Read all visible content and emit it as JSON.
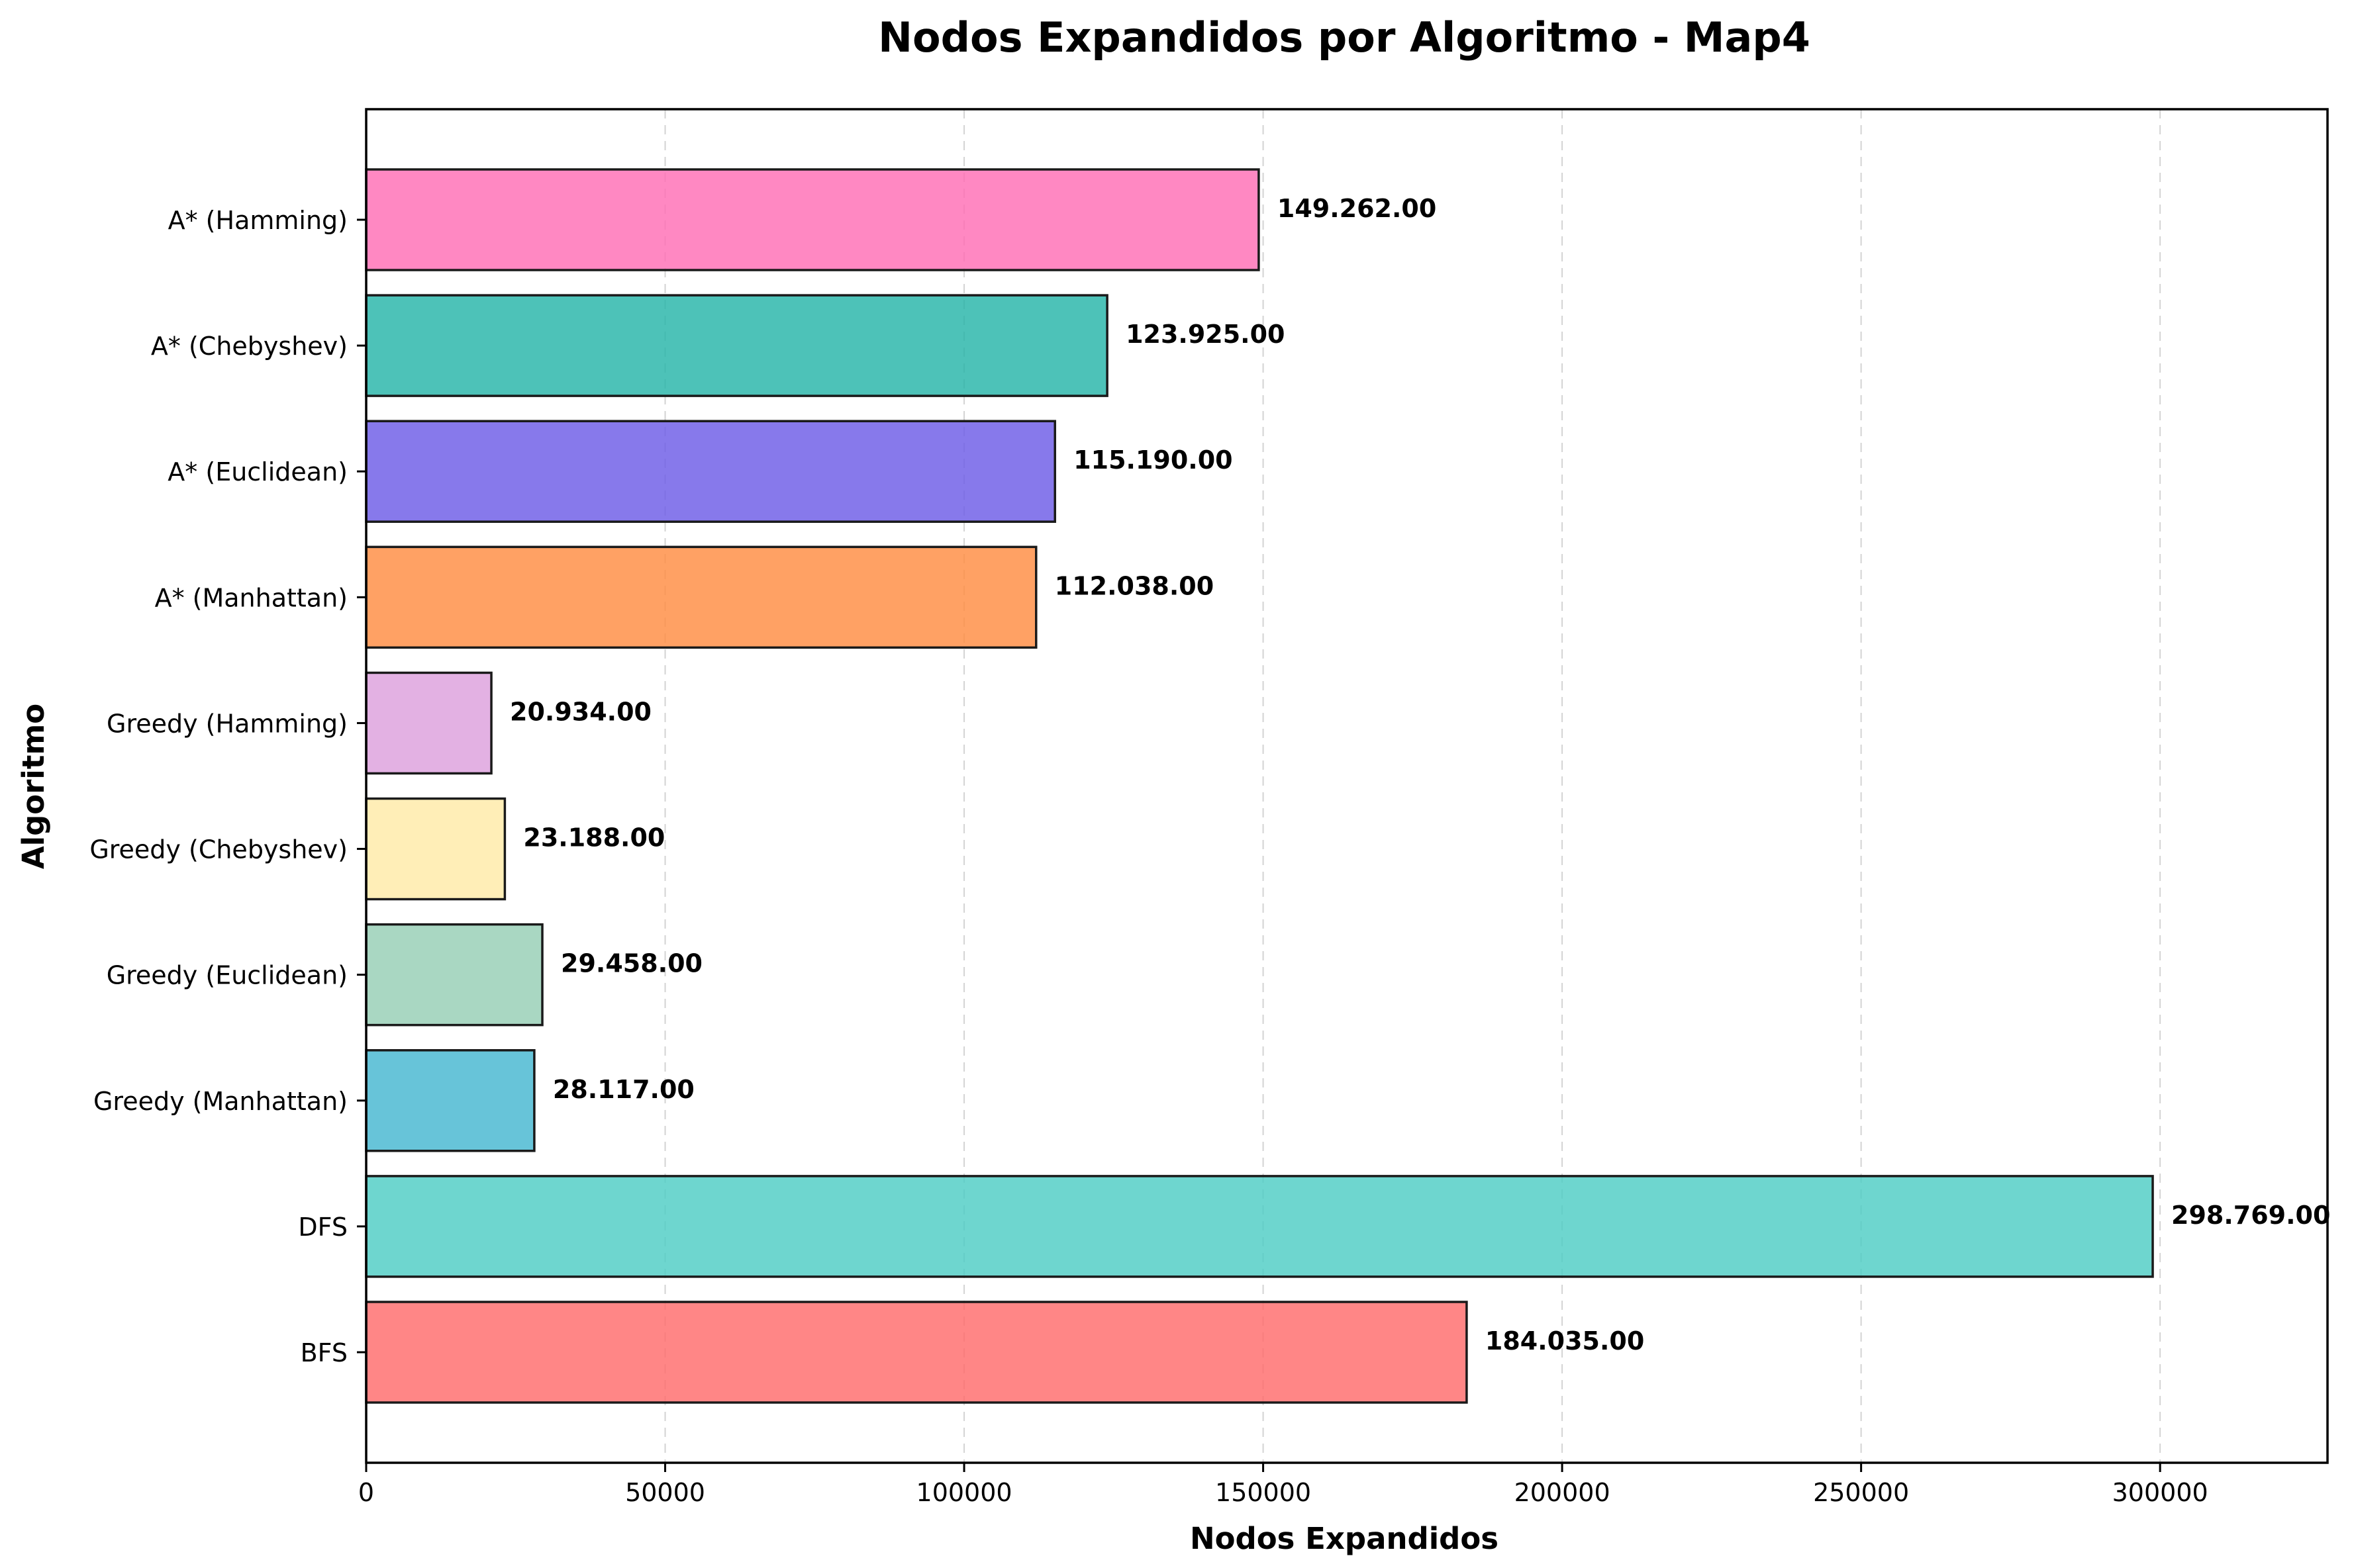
{
  "chart_data": {
    "type": "bar",
    "orientation": "horizontal",
    "title": "Nodos Expandidos por Algoritmo - Map4",
    "xlabel": "Nodos Expandidos",
    "ylabel": "Algoritmo",
    "xlim": [
      0,
      328000
    ],
    "xticks": [
      0,
      50000,
      100000,
      150000,
      200000,
      250000,
      300000
    ],
    "xtick_labels": [
      "0",
      "50000",
      "100000",
      "150000",
      "200000",
      "250000",
      "300000"
    ],
    "grid": "x, dashed",
    "categories": [
      "BFS",
      "DFS",
      "Greedy (Manhattan)",
      "Greedy (Euclidean)",
      "Greedy (Chebyshev)",
      "Greedy (Hamming)",
      "A* (Manhattan)",
      "A* (Euclidean)",
      "A* (Chebyshev)",
      "A* (Hamming)"
    ],
    "values": [
      184035,
      298769,
      28117,
      29458,
      23188,
      20934,
      112038,
      115190,
      123925,
      149262
    ],
    "value_labels": [
      "184.035.00",
      "298.769.00",
      "28.117.00",
      "29.458.00",
      "23.188.00",
      "20.934.00",
      "112.038.00",
      "115.190.00",
      "123.925.00",
      "149.262.00"
    ],
    "colors": [
      "#ff6b6b",
      "#4ecdc4",
      "#45b7d1",
      "#96ceb4",
      "#ffeaa7",
      "#dda0dd",
      "#ff8c42",
      "#6c5ce7",
      "#26b5a8",
      "#ff6eb4"
    ]
  }
}
